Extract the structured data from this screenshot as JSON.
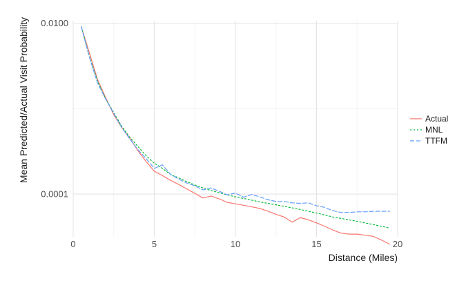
{
  "chart_data": {
    "type": "line",
    "xlabel": "Distance (Miles)",
    "ylabel": "Mean Predicted/Actual Visit Probability",
    "xlim": [
      0,
      20
    ],
    "ylim_log10": [
      -4.5,
      -1.97
    ],
    "y_scale": "log10",
    "x_ticks": [
      0,
      5,
      10,
      15,
      20
    ],
    "x_tick_labels": [
      "0",
      "5",
      "10",
      "15",
      "20"
    ],
    "y_ticks": [
      0.0001,
      0.01
    ],
    "y_tick_labels": [
      "0.0001",
      "0.0100"
    ],
    "grid": true,
    "legend_position": "right",
    "series": [
      {
        "name": "Actual",
        "color": "#F8766D",
        "dash": "solid",
        "points": [
          [
            0.5,
            0.0091
          ],
          [
            1.0,
            0.0045
          ],
          [
            1.5,
            0.0022
          ],
          [
            2.0,
            0.00135
          ],
          [
            2.5,
            0.00085
          ],
          [
            3.0,
            0.0006
          ],
          [
            3.5,
            0.00045
          ],
          [
            4.0,
            0.00032
          ],
          [
            4.5,
            0.00024
          ],
          [
            5.0,
            0.000185
          ],
          [
            5.5,
            0.000165
          ],
          [
            6.0,
            0.000145
          ],
          [
            6.5,
            0.00013
          ],
          [
            7.0,
            0.000115
          ],
          [
            7.5,
            0.000102
          ],
          [
            8.0,
            9e-05
          ],
          [
            8.5,
            9.5e-05
          ],
          [
            9.0,
            8.8e-05
          ],
          [
            9.5,
            8e-05
          ],
          [
            10.0,
            7.7e-05
          ],
          [
            10.5,
            7.4e-05
          ],
          [
            11.0,
            7.1e-05
          ],
          [
            11.5,
            6.8e-05
          ],
          [
            12.0,
            6.3e-05
          ],
          [
            12.5,
            5.8e-05
          ],
          [
            13.0,
            5.4e-05
          ],
          [
            13.5,
            4.7e-05
          ],
          [
            14.0,
            5.3e-05
          ],
          [
            14.5,
            5e-05
          ],
          [
            15.0,
            4.6e-05
          ],
          [
            15.5,
            4.2e-05
          ],
          [
            16.0,
            3.8e-05
          ],
          [
            16.5,
            3.5e-05
          ],
          [
            17.0,
            3.4e-05
          ],
          [
            17.5,
            3.4e-05
          ],
          [
            18.0,
            3.3e-05
          ],
          [
            18.5,
            3.2e-05
          ],
          [
            19.0,
            2.9e-05
          ],
          [
            19.5,
            2.6e-05
          ]
        ]
      },
      {
        "name": "MNL",
        "color": "#00BA38",
        "dash": "2,3",
        "points": [
          [
            0.5,
            0.0091
          ],
          [
            1.0,
            0.0041
          ],
          [
            1.5,
            0.0021
          ],
          [
            2.0,
            0.0013
          ],
          [
            2.5,
            0.0009
          ],
          [
            3.0,
            0.00062
          ],
          [
            3.5,
            0.00046
          ],
          [
            4.0,
            0.00036
          ],
          [
            4.5,
            0.00028
          ],
          [
            5.0,
            0.00023
          ],
          [
            5.5,
            0.0002
          ],
          [
            6.0,
            0.00017
          ],
          [
            6.5,
            0.000155
          ],
          [
            7.0,
            0.00014
          ],
          [
            7.5,
            0.000128
          ],
          [
            8.0,
            0.000118
          ],
          [
            8.5,
            0.00011
          ],
          [
            9.0,
            0.000104
          ],
          [
            9.5,
            9.8e-05
          ],
          [
            10.0,
            9.3e-05
          ],
          [
            10.5,
            8.9e-05
          ],
          [
            11.0,
            8.5e-05
          ],
          [
            11.5,
            8.1e-05
          ],
          [
            12.0,
            7.8e-05
          ],
          [
            12.5,
            7.5e-05
          ],
          [
            13.0,
            7.2e-05
          ],
          [
            13.5,
            6.9e-05
          ],
          [
            14.0,
            6.6e-05
          ],
          [
            14.5,
            6.3e-05
          ],
          [
            15.0,
            6e-05
          ],
          [
            15.5,
            5.7e-05
          ],
          [
            16.0,
            5.4e-05
          ],
          [
            16.5,
            5.2e-05
          ],
          [
            17.0,
            5e-05
          ],
          [
            17.5,
            4.8e-05
          ],
          [
            18.0,
            4.6e-05
          ],
          [
            18.5,
            4.4e-05
          ],
          [
            19.0,
            4.2e-05
          ],
          [
            19.5,
            4e-05
          ]
        ]
      },
      {
        "name": "TTFM",
        "color": "#619CFF",
        "dash": "6,3",
        "points": [
          [
            0.5,
            0.0091
          ],
          [
            1.0,
            0.004
          ],
          [
            1.5,
            0.002
          ],
          [
            2.0,
            0.0013
          ],
          [
            2.5,
            0.00088
          ],
          [
            3.0,
            0.0006
          ],
          [
            3.5,
            0.00044
          ],
          [
            4.0,
            0.00033
          ],
          [
            4.5,
            0.00026
          ],
          [
            5.0,
            0.0002
          ],
          [
            5.5,
            0.00022
          ],
          [
            6.0,
            0.00017
          ],
          [
            6.5,
            0.00015
          ],
          [
            7.0,
            0.000135
          ],
          [
            7.5,
            0.000125
          ],
          [
            8.0,
            0.000112
          ],
          [
            8.5,
            0.000118
          ],
          [
            9.0,
            0.000108
          ],
          [
            9.5,
            9.8e-05
          ],
          [
            10.0,
            0.000103
          ],
          [
            10.5,
            9.2e-05
          ],
          [
            11.0,
            9.9e-05
          ],
          [
            11.5,
            9.3e-05
          ],
          [
            12.0,
            8.6e-05
          ],
          [
            12.5,
            8.2e-05
          ],
          [
            13.0,
            8.2e-05
          ],
          [
            13.5,
            7.9e-05
          ],
          [
            14.0,
            7.8e-05
          ],
          [
            14.5,
            7.9e-05
          ],
          [
            15.0,
            7.3e-05
          ],
          [
            15.5,
            7e-05
          ],
          [
            16.0,
            6.4e-05
          ],
          [
            16.5,
            6.1e-05
          ],
          [
            17.0,
            6.1e-05
          ],
          [
            17.5,
            6.2e-05
          ],
          [
            18.0,
            6.2e-05
          ],
          [
            18.5,
            6.3e-05
          ],
          [
            19.0,
            6.3e-05
          ],
          [
            19.5,
            6.3e-05
          ]
        ]
      }
    ]
  }
}
